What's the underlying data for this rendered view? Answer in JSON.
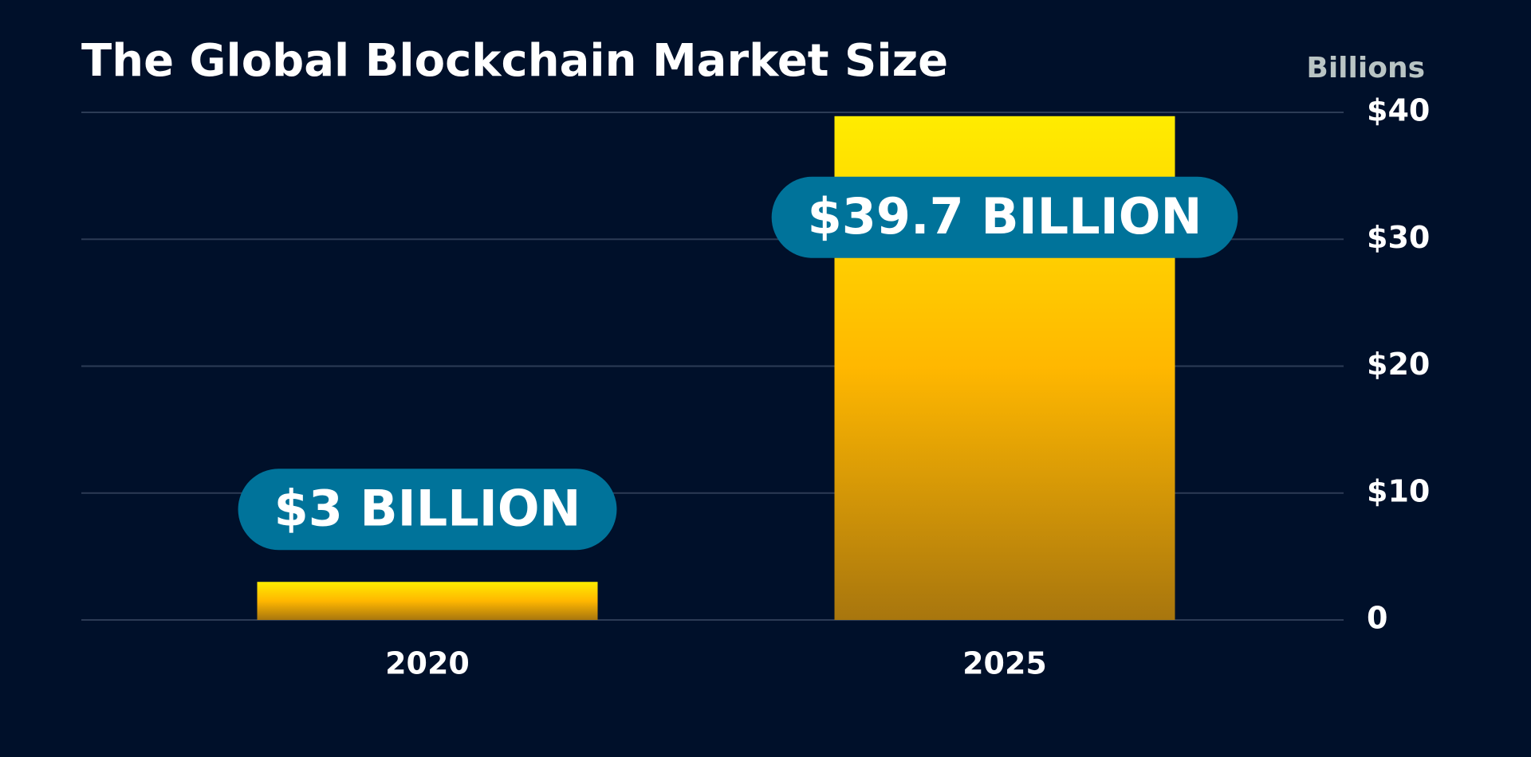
{
  "chart_data": {
    "type": "bar",
    "title": "The Global Blockchain Market Size",
    "y_axis_label": "Billions",
    "categories": [
      "2020",
      "2025"
    ],
    "values": [
      3,
      39.7
    ],
    "value_labels": [
      "$3 BILLION",
      "$39.7 BILLION"
    ],
    "ylim": [
      0,
      40
    ],
    "yticks": [
      0,
      {
        "value": 10,
        "label": "$10"
      },
      {
        "value": 20,
        "label": "$20"
      },
      {
        "value": 30,
        "label": "$30"
      },
      {
        "value": 40,
        "label": "$40"
      }
    ],
    "grid": true,
    "label_color": "#00739a"
  }
}
